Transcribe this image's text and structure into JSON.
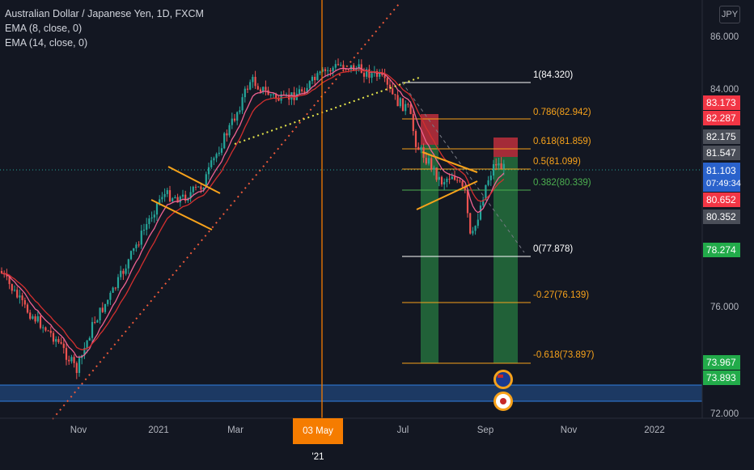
{
  "legend": {
    "symbol": "Australian Dollar / Japanese Yen, 1D, FXCM",
    "ema1": "EMA (8, close, 0)",
    "ema2": "EMA (14, close, 0)"
  },
  "currency_button": "JPY",
  "price_axis": [
    "86.000",
    "84.000",
    "76.000",
    "72.000"
  ],
  "time_axis": [
    "Nov",
    "2021",
    "Mar",
    "Jul",
    "Sep",
    "Nov",
    "2022"
  ],
  "crosshair_date": "03 May '21",
  "price_tags": [
    {
      "value": "83.173",
      "color": "red"
    },
    {
      "value": "82.287",
      "color": "red"
    },
    {
      "value": "82.175",
      "color": "grey"
    },
    {
      "value": "81.547",
      "color": "grey"
    },
    {
      "value": "81.103",
      "countdown": "07:49:34",
      "color": "blue"
    },
    {
      "value": "80.652",
      "color": "red"
    },
    {
      "value": "80.352",
      "color": "grey"
    },
    {
      "value": "78.274",
      "color": "green"
    },
    {
      "value": "73.967",
      "color": "green"
    },
    {
      "value": "73.893",
      "color": "green"
    }
  ],
  "fib_levels": [
    {
      "label": "1(84.320)",
      "color": "#ffffff"
    },
    {
      "label": "0.786(82.942)",
      "color": "#f7a21b"
    },
    {
      "label": "0.618(81.859)",
      "color": "#f7a21b"
    },
    {
      "label": "0.5(81.099)",
      "color": "#f7a21b"
    },
    {
      "label": "0.382(80.339)",
      "color": "#4caf50"
    },
    {
      "label": "0(77.878)",
      "color": "#ffffff"
    },
    {
      "label": "-0.27(76.139)",
      "color": "#f7a21b"
    },
    {
      "label": "-0.618(73.897)",
      "color": "#f7a21b"
    }
  ],
  "colors": {
    "background": "#131722",
    "bull": "#26a69a",
    "bear": "#ef5350",
    "ema_fast": "#f06292",
    "ema_slow": "#d32f2f",
    "trendline": "#ff9800",
    "crosshair": "#f57c00",
    "support_zone": "#1e4f8f"
  }
}
